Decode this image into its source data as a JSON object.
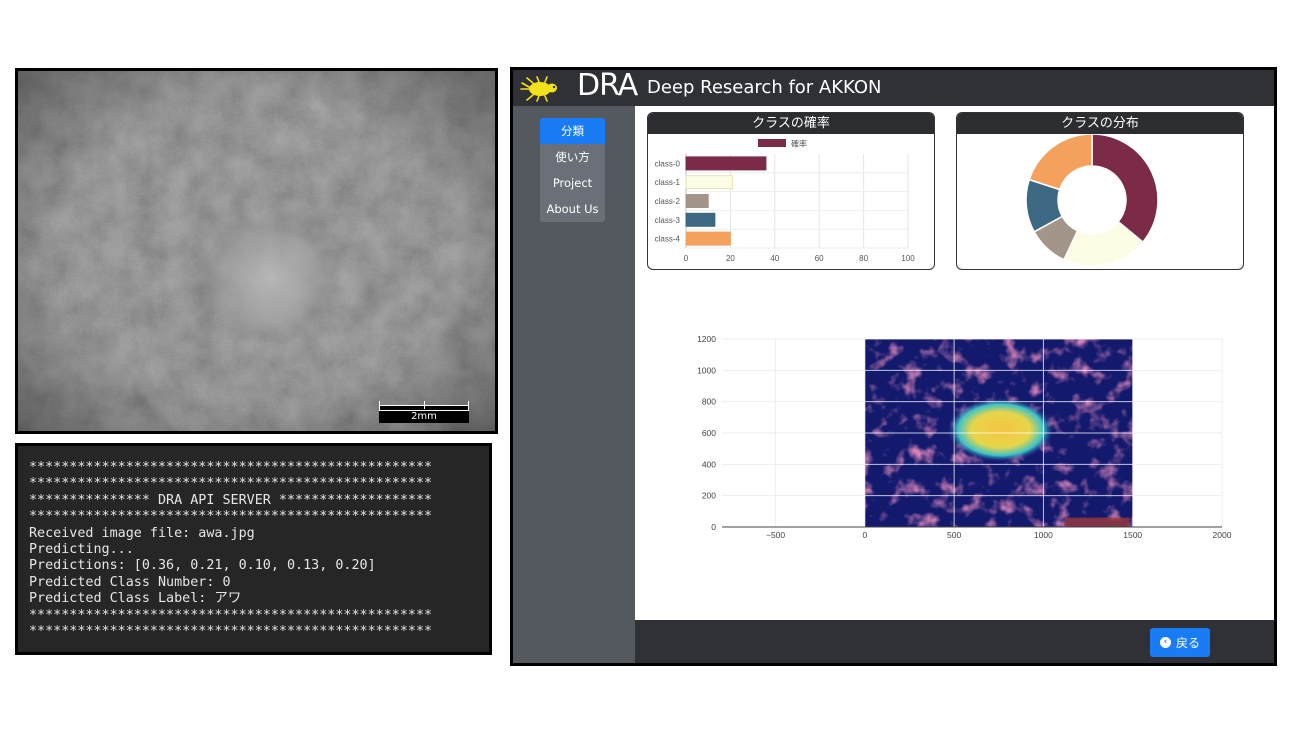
{
  "micrograph": {
    "scale_label": "2mm"
  },
  "terminal": {
    "lines": [
      "**************************************************",
      "**************************************************",
      "*************** DRA API SERVER *******************",
      "**************************************************",
      "Received image file: awa.jpg",
      "Predicting...",
      "Predictions: [0.36, 0.21, 0.10, 0.13, 0.20]",
      "Predicted Class Number: 0",
      "Predicted Class Label: アワ",
      "**************************************************",
      "**************************************************"
    ]
  },
  "app": {
    "brand": "DRA",
    "title": "Deep Research for AKKON",
    "logo_icon": "bug-icon",
    "nav": [
      {
        "label": "分類",
        "active": true
      },
      {
        "label": "使い方",
        "active": false
      },
      {
        "label": "Project",
        "active": false
      },
      {
        "label": "About Us",
        "active": false
      }
    ],
    "back_button": "戻る",
    "back_icon": "chevron-left-circle-icon",
    "colors": {
      "accent": "#1a7cf5",
      "topbar": "#2f3136",
      "sidebar": "#545960"
    }
  },
  "bar_card_title": "クラスの確率",
  "pie_card_title": "クラスの分布",
  "chart_data": [
    {
      "type": "bar",
      "orientation": "horizontal",
      "categories": [
        "class-0",
        "class-1",
        "class-2",
        "class-3",
        "class-4"
      ],
      "series": [
        {
          "name": "確率",
          "values": [
            36,
            21,
            10,
            13,
            20
          ]
        }
      ],
      "colors": [
        "#7b2a48",
        "#fdfde6",
        "#a3958a",
        "#3d6a82",
        "#f4a15e"
      ],
      "xticks": [
        "0",
        "20",
        "40",
        "60",
        "80",
        "100"
      ],
      "xlim": [
        0,
        100
      ],
      "legend": "top",
      "grid": true
    },
    {
      "type": "pie",
      "donut": true,
      "categories": [
        "class-0",
        "class-1",
        "class-2",
        "class-3",
        "class-4"
      ],
      "values": [
        36,
        21,
        10,
        13,
        20
      ],
      "colors": [
        "#7b2a48",
        "#fdfde6",
        "#a3958a",
        "#3d6a82",
        "#f4a15e"
      ]
    },
    {
      "type": "heatmap",
      "xticks": [
        "−500",
        "0",
        "500",
        "1000",
        "1500",
        "2000"
      ],
      "yticks": [
        "0",
        "200",
        "400",
        "600",
        "800",
        "1000",
        "1200"
      ],
      "xlim": [
        -800,
        2000
      ],
      "ylim": [
        0,
        1200
      ],
      "image_extent_x": [
        0,
        1500
      ],
      "image_extent_y": [
        0,
        1200
      ],
      "grid": true
    }
  ]
}
